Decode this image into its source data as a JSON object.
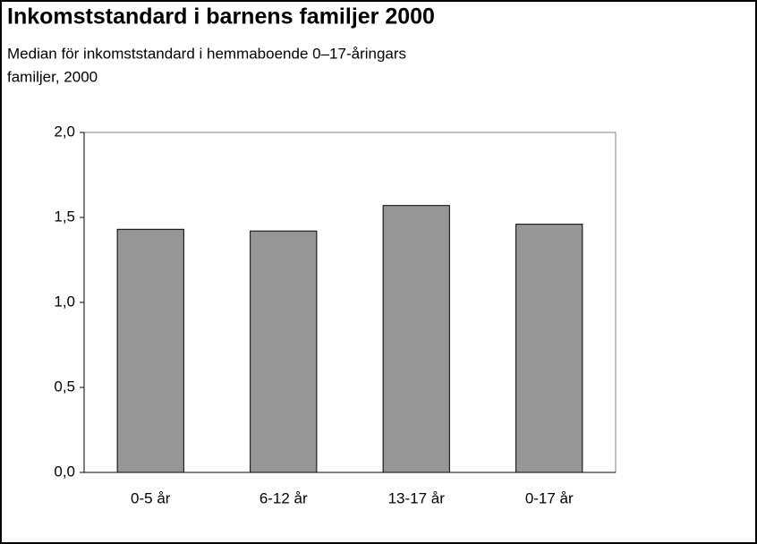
{
  "chart_data": {
    "type": "bar",
    "title": "Inkomststandard i barnens familjer 2000",
    "subtitle": [
      "Median för inkomststandard i hemmaboende 0–17-åringars",
      "familjer, 2000"
    ],
    "categories": [
      "0-5 år",
      "6-12 år",
      "13-17 år",
      "0-17 år"
    ],
    "values": [
      1.43,
      1.42,
      1.57,
      1.46
    ],
    "color": "#969696",
    "ylim": [
      0,
      2
    ],
    "yticks": [
      {
        "value": 0,
        "label": "0,0"
      },
      {
        "value": 0.5,
        "label": "0,5"
      },
      {
        "value": 1,
        "label": "1,0"
      },
      {
        "value": 1.5,
        "label": "1,5"
      },
      {
        "value": 2,
        "label": "2,0"
      }
    ],
    "grid": false
  }
}
